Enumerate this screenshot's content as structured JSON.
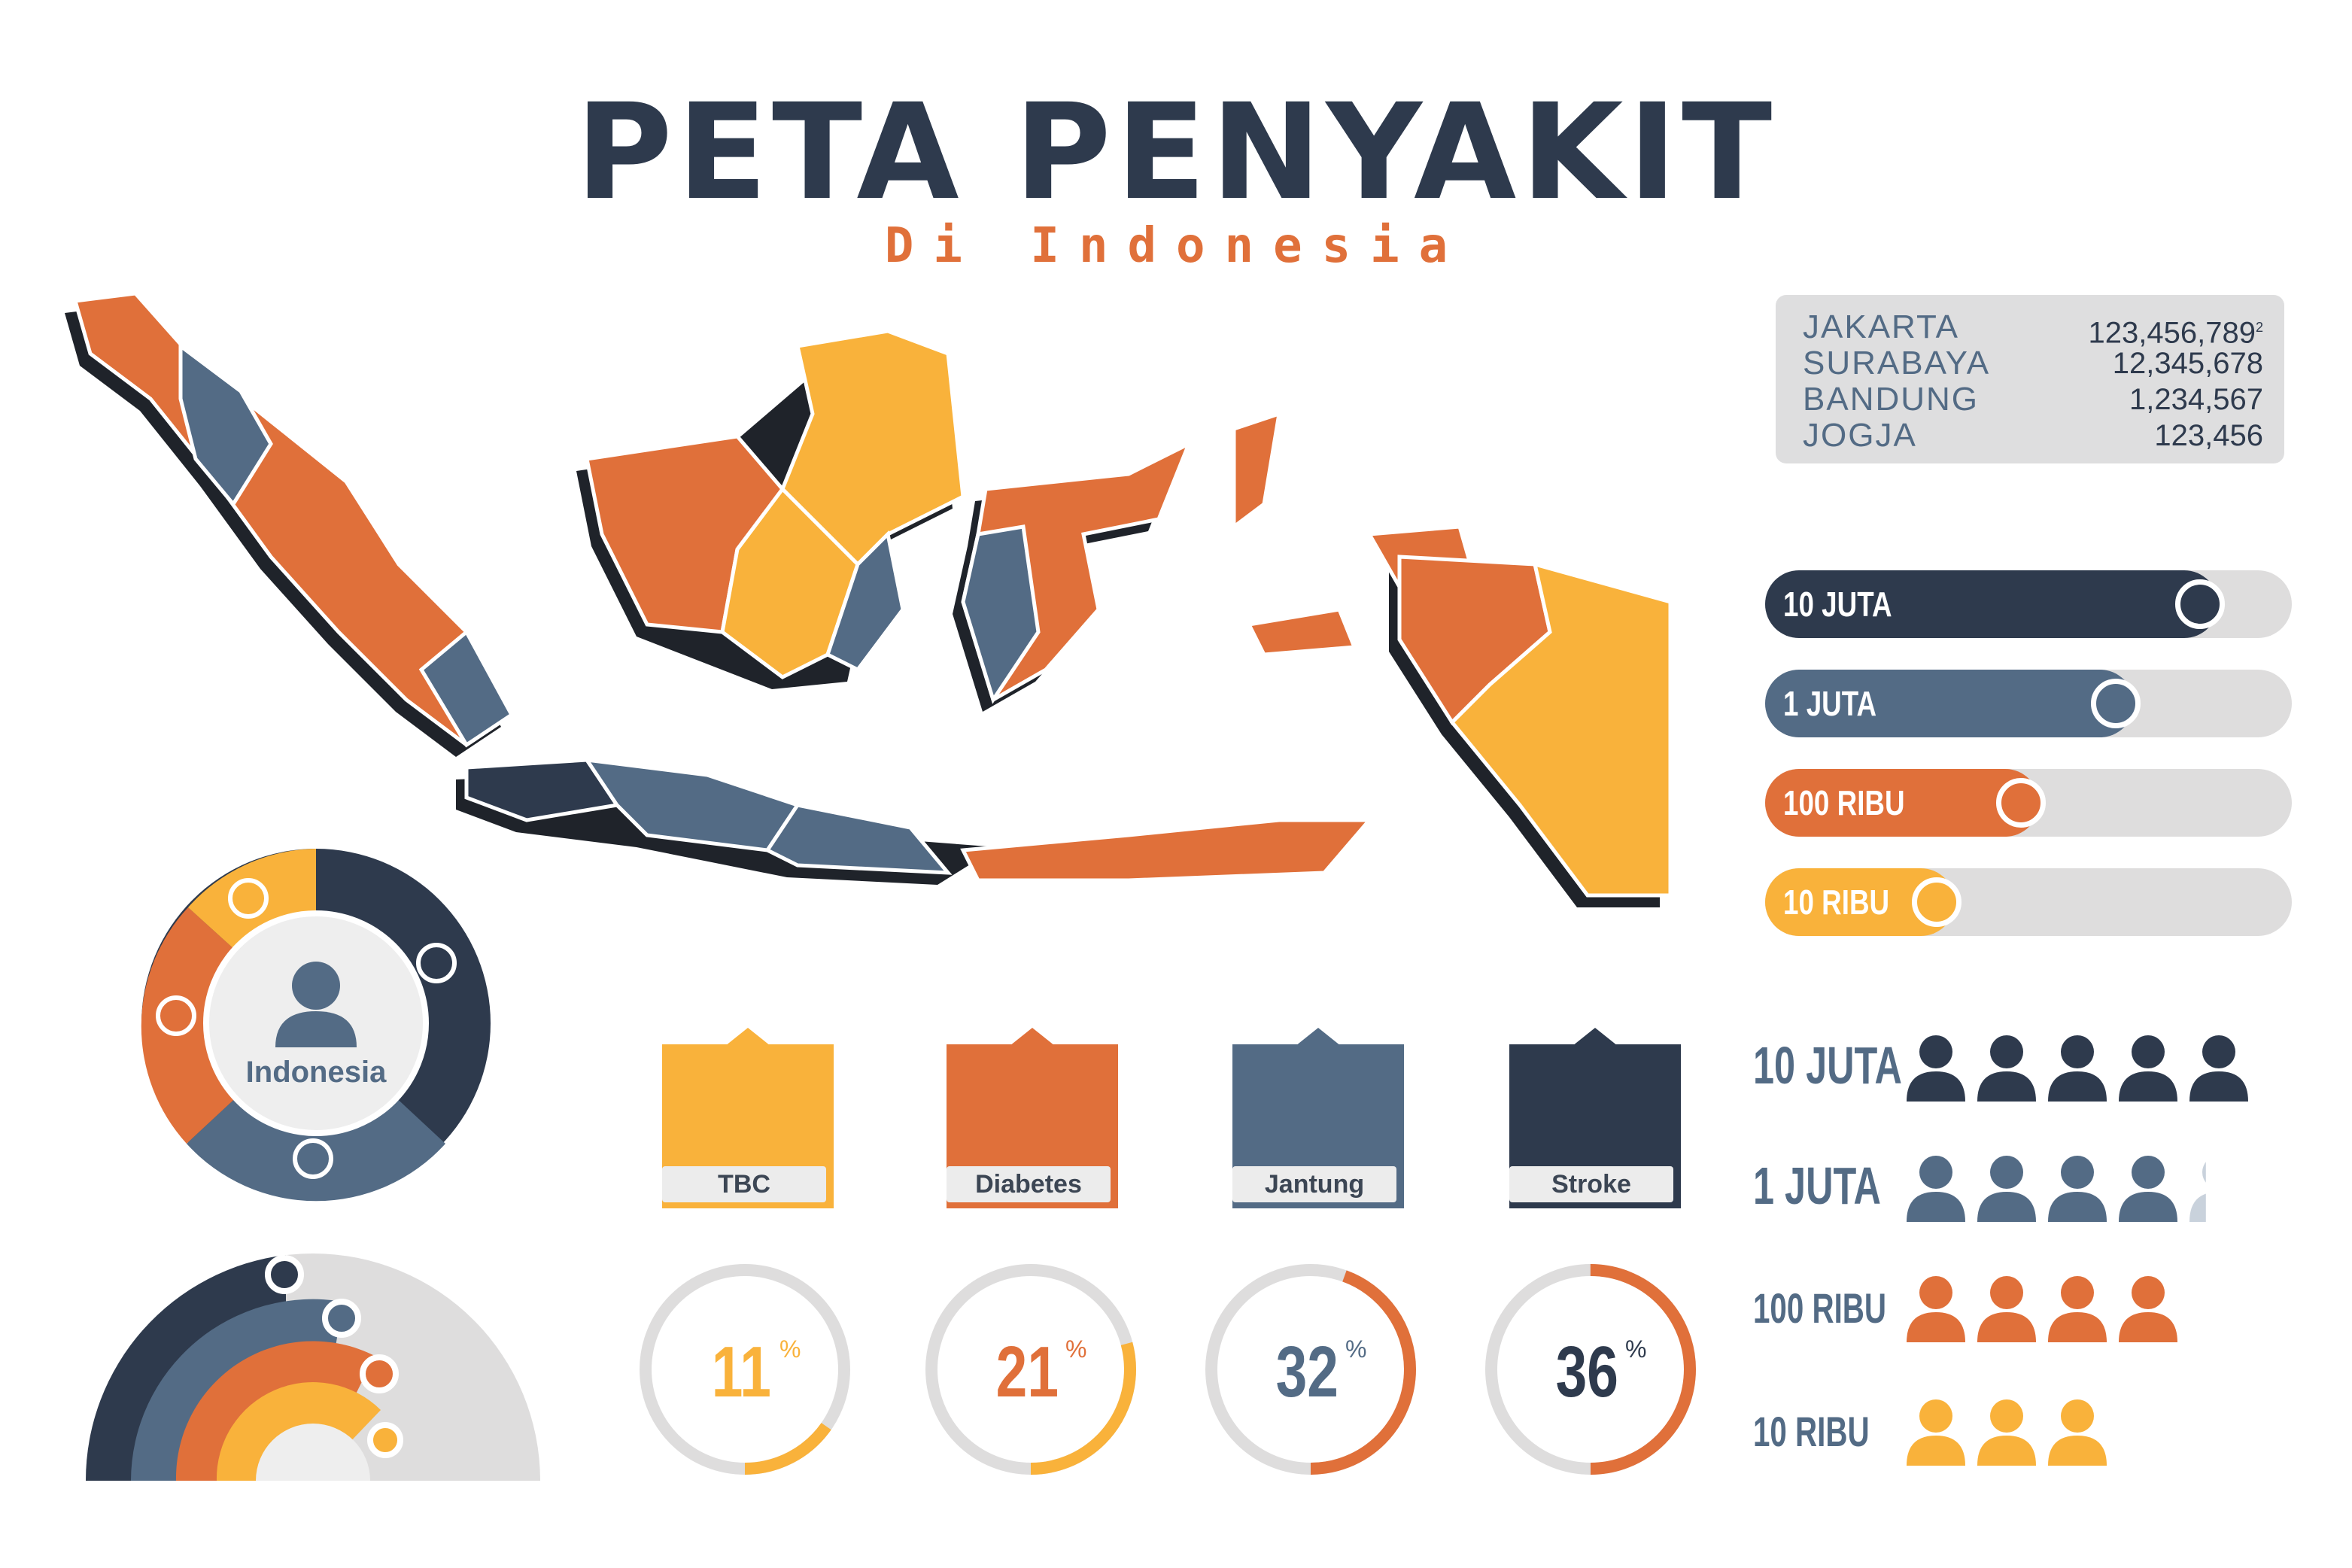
{
  "header": {
    "title": "PETA PENYAKIT",
    "subtitle": "Di Indonesia"
  },
  "colors": {
    "navy": "#2e3a4d",
    "slate": "#536b85",
    "orange": "#e0703a",
    "yellow": "#f9b23b",
    "light_gray": "#dedddd"
  },
  "cities": [
    {
      "name": "JAKARTA",
      "value": "123,456,789",
      "sup": "2"
    },
    {
      "name": "SURABAYA",
      "value": "12,345,678",
      "sup": ""
    },
    {
      "name": "BANDUNG",
      "value": "1,234,567",
      "sup": ""
    },
    {
      "name": "JOGJA",
      "value": "123,456",
      "sup": ""
    }
  ],
  "level_bars": [
    {
      "label": "10 JUTA",
      "fill": 0.86,
      "color": "#2e3a4d"
    },
    {
      "label": "1 JUTA",
      "fill": 0.7,
      "color": "#536b85"
    },
    {
      "label": "100 RIBU",
      "fill": 0.52,
      "color": "#e0703a"
    },
    {
      "label": "10 RIBU",
      "fill": 0.36,
      "color": "#f9b23b"
    }
  ],
  "donut": {
    "center_label": "Indonesia",
    "icon": "person-icon"
  },
  "diseases": [
    {
      "label": "TBC",
      "color": "#f9b23b"
    },
    {
      "label": "Diabetes",
      "color": "#e0703a"
    },
    {
      "label": "Jantung",
      "color": "#536b85"
    },
    {
      "label": "Stroke",
      "color": "#2e3a4d"
    }
  ],
  "chart_data": [
    {
      "type": "pie",
      "title": "",
      "categories": [
        "",
        "",
        "",
        ""
      ],
      "values": [
        11,
        21,
        32,
        36
      ],
      "units": "%",
      "labels": [
        "11",
        "21",
        "32",
        "36"
      ],
      "unit_symbol": "%"
    }
  ],
  "people_legend": [
    {
      "label": "10 JUTA",
      "count": 5,
      "color": "#2e3a4d"
    },
    {
      "label": "1 JUTA",
      "count": 4.3,
      "color": "#536b85"
    },
    {
      "label": "100 RIBU",
      "count": 4,
      "color": "#e0703a"
    },
    {
      "label": "10 RIBU",
      "count": 3,
      "color": "#f9b23b"
    }
  ]
}
